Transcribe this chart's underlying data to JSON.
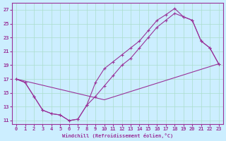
{
  "xlabel": "Windchill (Refroidissement éolien,°C)",
  "bg_color": "#cceeff",
  "line_color": "#993399",
  "grid_color": "#aaddcc",
  "xlim": [
    -0.5,
    23.5
  ],
  "ylim": [
    10.5,
    28
  ],
  "xticks": [
    0,
    1,
    2,
    3,
    4,
    5,
    6,
    7,
    8,
    9,
    10,
    11,
    12,
    13,
    14,
    15,
    16,
    17,
    18,
    19,
    20,
    21,
    22,
    23
  ],
  "yticks": [
    11,
    13,
    15,
    17,
    19,
    21,
    23,
    25,
    27
  ],
  "line1_x": [
    0,
    1,
    2,
    3,
    4,
    5,
    6,
    7,
    8,
    9,
    10,
    11,
    12,
    13,
    14,
    15,
    16,
    17,
    18,
    19,
    20,
    21,
    22,
    23
  ],
  "line1_y": [
    17.0,
    16.5,
    14.5,
    12.5,
    12.0,
    11.8,
    11.0,
    11.2,
    13.2,
    16.5,
    18.5,
    19.5,
    20.5,
    21.5,
    22.5,
    24.0,
    25.5,
    26.3,
    27.2,
    26.0,
    25.5,
    22.5,
    21.5,
    19.2
  ],
  "line2_x": [
    0,
    1,
    2,
    3,
    4,
    5,
    6,
    7,
    8,
    9,
    10,
    11,
    12,
    13,
    14,
    15,
    16,
    17,
    18,
    19,
    20,
    21,
    22,
    23
  ],
  "line2_y": [
    17.0,
    16.5,
    14.5,
    12.5,
    12.0,
    11.8,
    11.0,
    11.2,
    13.2,
    14.5,
    16.0,
    17.5,
    19.0,
    20.0,
    21.5,
    23.0,
    24.5,
    25.5,
    26.5,
    26.0,
    25.5,
    22.5,
    21.5,
    19.2
  ],
  "line3_x": [
    0,
    10,
    23
  ],
  "line3_y": [
    17.0,
    14.0,
    19.2
  ]
}
